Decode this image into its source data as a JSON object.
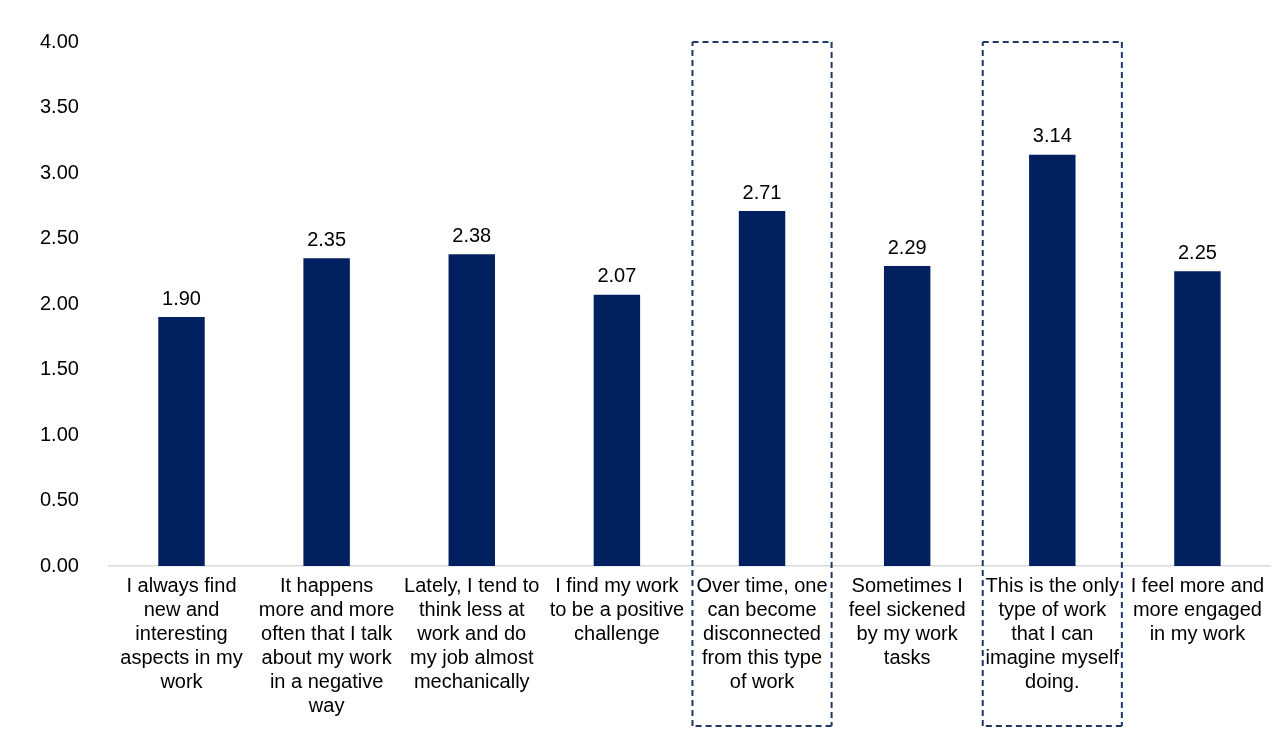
{
  "chart_data": {
    "type": "bar",
    "categories": [
      "I always find new and interesting aspects in my work",
      "It happens more and more often that I talk about my work in a negative way",
      "Lately, I tend to think less at work and do my job almost mechanically",
      "I find my work to be a positive challenge",
      "Over time, one can become disconnected from this type of work",
      "Sometimes I feel sickened by my work tasks",
      "This is the only type of work that I can imagine myself doing.",
      "I feel more and more engaged in my work"
    ],
    "values": [
      1.9,
      2.35,
      2.38,
      2.07,
      2.71,
      2.29,
      3.14,
      2.25
    ],
    "value_labels": [
      "1.90",
      "2.35",
      "2.38",
      "2.07",
      "2.71",
      "2.29",
      "3.14",
      "2.25"
    ],
    "color": "#002060",
    "ylim": [
      0,
      4
    ],
    "yticks": [
      {
        "value": 0,
        "label": "0.00"
      },
      {
        "value": 0.5,
        "label": "0.50"
      },
      {
        "value": 1,
        "label": "1.00"
      },
      {
        "value": 1.5,
        "label": "1.50"
      },
      {
        "value": 2,
        "label": "2.00"
      },
      {
        "value": 2.5,
        "label": "2.50"
      },
      {
        "value": 3,
        "label": "3.00"
      },
      {
        "value": 3.5,
        "label": "3.50"
      },
      {
        "value": 4,
        "label": "4.00"
      }
    ],
    "grid": false,
    "legend": false
  }
}
